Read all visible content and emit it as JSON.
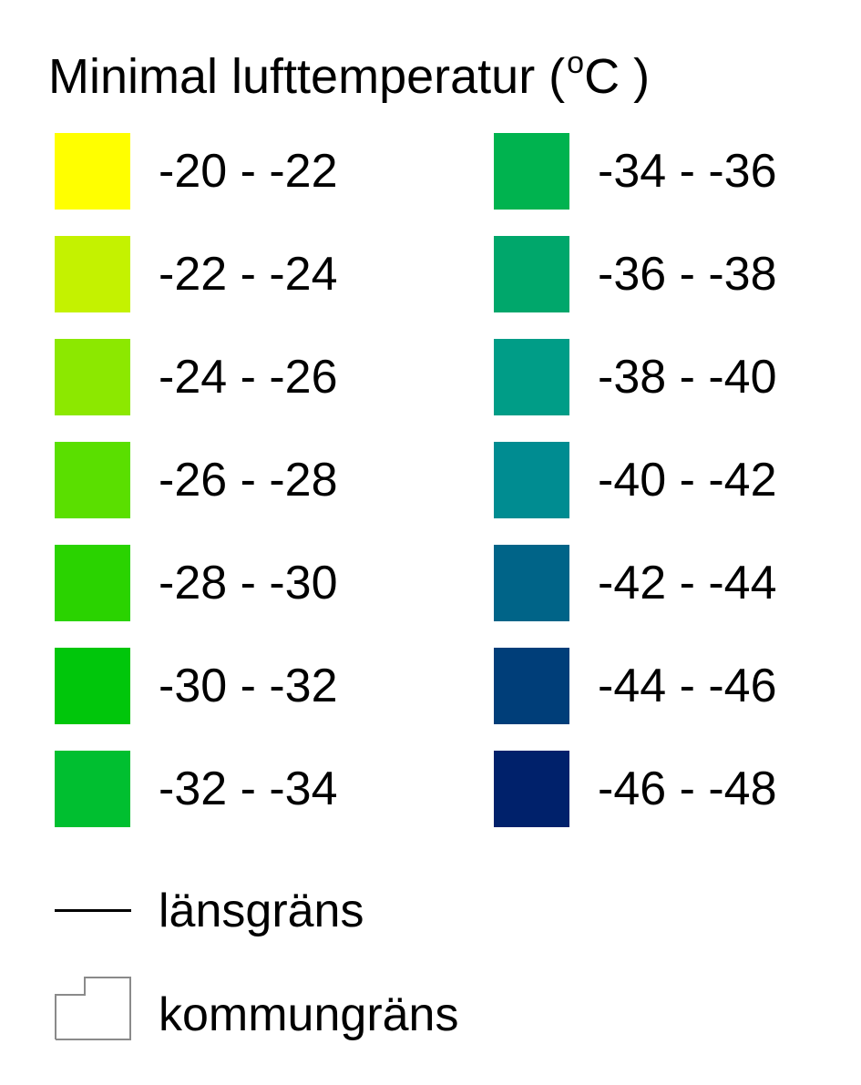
{
  "legend": {
    "title": "Minimal lufttemperatur (",
    "title_sup": "o",
    "title_unit": "C )",
    "classes_left": [
      {
        "label": "-20 - -22",
        "color": "#FFFF00"
      },
      {
        "label": "-22 - -24",
        "color": "#C4F200"
      },
      {
        "label": "-24 - -26",
        "color": "#8CE800"
      },
      {
        "label": "-26 - -28",
        "color": "#5ADF00"
      },
      {
        "label": "-28 - -30",
        "color": "#2AD300"
      },
      {
        "label": "-30 - -32",
        "color": "#00C60B"
      },
      {
        "label": "-32 - -34",
        "color": "#00BF30"
      }
    ],
    "classes_right": [
      {
        "label": "-34 - -36",
        "color": "#00B34F"
      },
      {
        "label": "-36 - -38",
        "color": "#00A76B"
      },
      {
        "label": "-38 - -40",
        "color": "#009D87"
      },
      {
        "label": "-40 - -42",
        "color": "#008C91"
      },
      {
        "label": "-42 - -44",
        "color": "#006488"
      },
      {
        "label": "-44 - -46",
        "color": "#003E79"
      },
      {
        "label": "-46 - -48",
        "color": "#00216B"
      }
    ],
    "boundaries": [
      {
        "label": "länsgräns",
        "symbol": "solid-line"
      },
      {
        "label": "kommungräns",
        "symbol": "outlined-polygon"
      }
    ]
  }
}
